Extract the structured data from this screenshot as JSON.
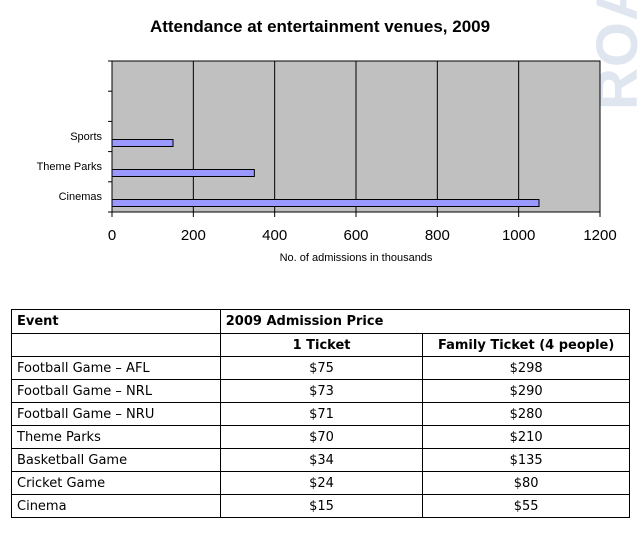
{
  "watermark": "ROA",
  "chart_data": {
    "type": "bar",
    "orientation": "horizontal",
    "title": "Attendance at entertainment venues, 2009",
    "xlabel": "No. of admissions in thousands",
    "ylabel": "",
    "categories": [
      "Sports",
      "Theme Parks",
      "Cinemas"
    ],
    "values": [
      150,
      350,
      1050
    ],
    "xlim": [
      0,
      1200
    ],
    "xticks": [
      "0",
      "200",
      "400",
      "600",
      "800",
      "1000",
      "1200"
    ],
    "grid": "vertical",
    "legend": "none",
    "colors": {
      "bar": "#9999ff",
      "plot_bg": "#c0c0c0"
    }
  },
  "table": {
    "header": {
      "event": "Event",
      "price_group": "2009 Admission Price",
      "single": "1 Ticket",
      "family": "Family Ticket (4 people)"
    },
    "rows": [
      {
        "event": "Football Game – AFL",
        "single": "$75",
        "family": "$298"
      },
      {
        "event": "Football Game – NRL",
        "single": "$73",
        "family": "$290"
      },
      {
        "event": "Football Game – NRU",
        "single": "$71",
        "family": "$280"
      },
      {
        "event": "Theme Parks",
        "single": "$70",
        "family": "$210"
      },
      {
        "event": "Basketball Game",
        "single": "$34",
        "family": "$135"
      },
      {
        "event": "Cricket Game",
        "single": "$24",
        "family": "$80"
      },
      {
        "event": "Cinema",
        "single": "$15",
        "family": "$55"
      }
    ]
  }
}
